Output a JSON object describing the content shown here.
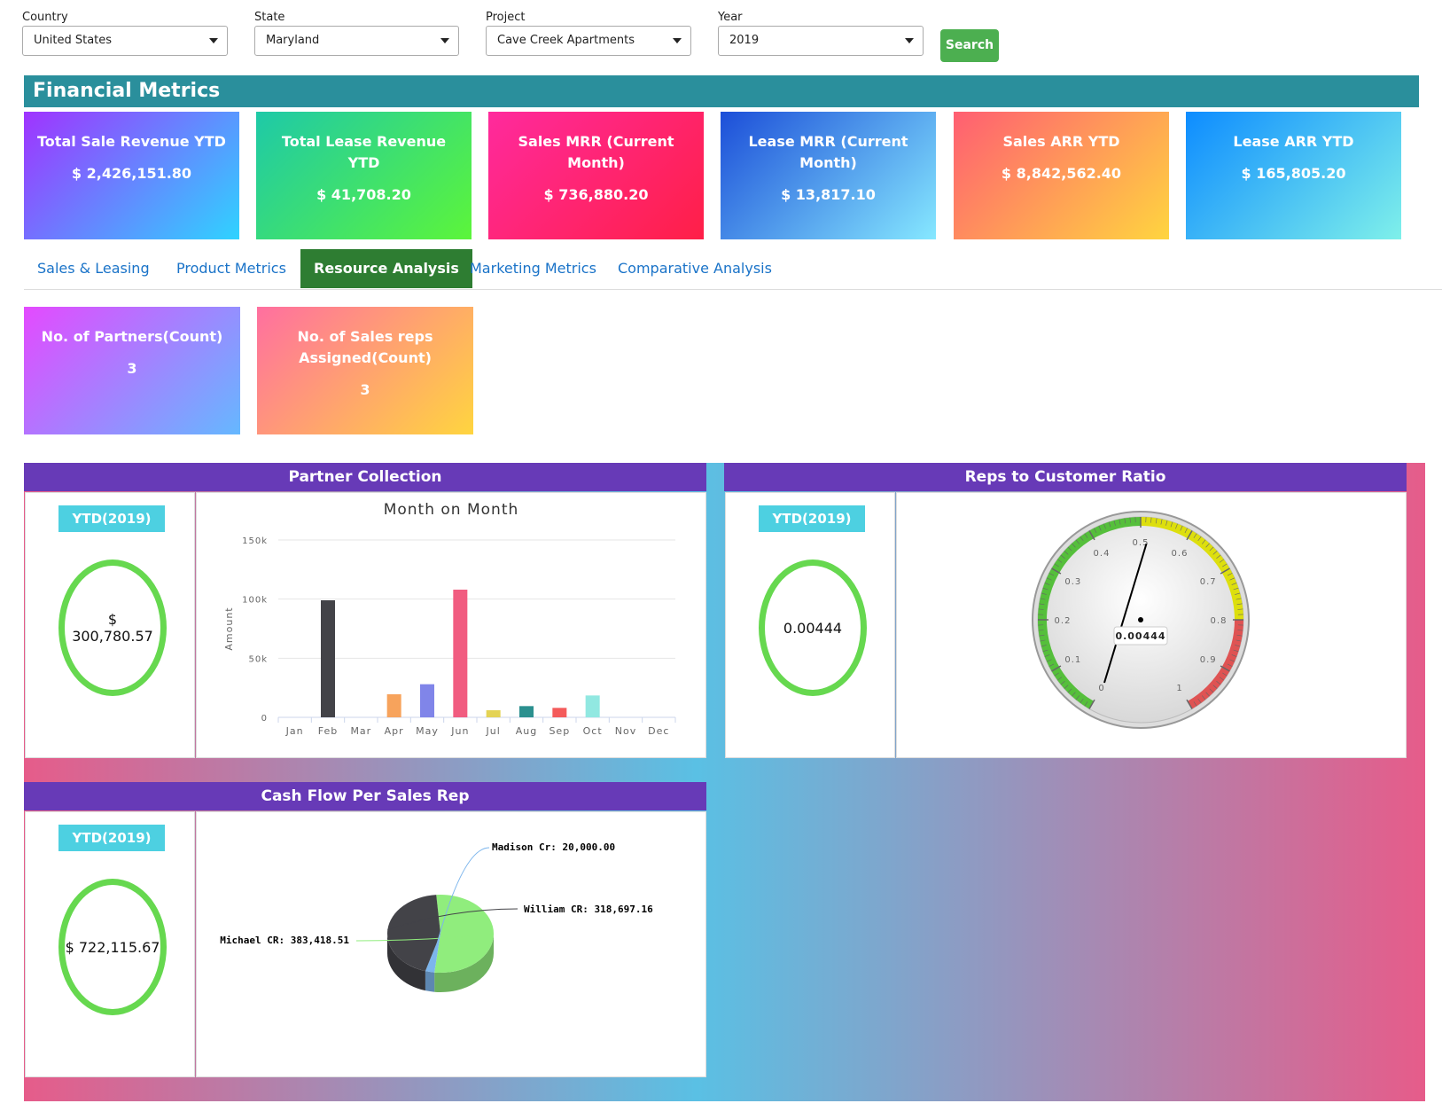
{
  "filters": {
    "country": {
      "label": "Country",
      "value": "United States"
    },
    "state": {
      "label": "State",
      "value": "Maryland"
    },
    "project": {
      "label": "Project",
      "value": "Cave Creek Apartments"
    },
    "year": {
      "label": "Year",
      "value": "2019"
    },
    "search_label": "Search"
  },
  "banner": {
    "title": "Financial Metrics"
  },
  "cards": [
    {
      "title": "Total Sale Revenue YTD",
      "value": "$ 2,426,151.80",
      "gradient": [
        "#a033ff",
        "#2fd3ff"
      ]
    },
    {
      "title": "Total Lease Revenue YTD",
      "value": "$ 41,708.20",
      "gradient": [
        "#1ec9a8",
        "#5cf53a"
      ]
    },
    {
      "title": "Sales MRR (Current Month)",
      "value": "$ 736,880.20",
      "gradient": [
        "#ff2a9d",
        "#ff1f47"
      ]
    },
    {
      "title": "Lease MRR (Current Month)",
      "value": "$ 13,817.10",
      "gradient": [
        "#1c4ed8",
        "#86e8ff"
      ]
    },
    {
      "title": "Sales ARR YTD",
      "value": "$ 8,842,562.40",
      "gradient": [
        "#ff5e72",
        "#ffd53f"
      ]
    },
    {
      "title": "Lease ARR YTD",
      "value": "$ 165,805.20",
      "gradient": [
        "#0d8cff",
        "#7ff0ea"
      ]
    }
  ],
  "tabs": [
    {
      "label": "Sales & Leasing",
      "active": false
    },
    {
      "label": "Product Metrics",
      "active": false
    },
    {
      "label": "Resource Analysis",
      "active": true
    },
    {
      "label": "Marketing Metrics",
      "active": false
    },
    {
      "label": "Comparative Analysis",
      "active": false
    }
  ],
  "resource_cards": [
    {
      "title": "No. of Partners(Count)",
      "value": "3",
      "gradient": [
        "#e44aff",
        "#65b8ff"
      ]
    },
    {
      "title": "No. of Sales reps Assigned(Count)",
      "value": "3",
      "gradient": [
        "#ff6fa0",
        "#ffd53f"
      ]
    }
  ],
  "partner_collection": {
    "title": "Partner Collection",
    "badge": "YTD(2019)",
    "ring_currency": "$",
    "ring_value": "300,780.57"
  },
  "reps_ratio": {
    "title": "Reps to Customer Ratio",
    "badge": "YTD(2019)",
    "ring_value": "0.00444",
    "gauge_readout": "0.00444",
    "gauge_ticks": [
      "0",
      "0.1",
      "0.2",
      "0.3",
      "0.4",
      "0.5",
      "0.6",
      "0.7",
      "0.8",
      "0.9",
      "1"
    ]
  },
  "cash_flow": {
    "title": "Cash Flow Per Sales Rep",
    "badge": "YTD(2019)",
    "ring_value": "$ 722,115.67"
  },
  "chart_data": [
    {
      "type": "bar",
      "title": "Month on Month",
      "xlabel": "",
      "ylabel": "Amount",
      "ylim": [
        0,
        150000
      ],
      "ytick_labels": [
        "0",
        "50k",
        "100k",
        "150k"
      ],
      "categories": [
        "Jan",
        "Feb",
        "Mar",
        "Apr",
        "May",
        "Jun",
        "Jul",
        "Aug",
        "Sep",
        "Oct",
        "Nov",
        "Dec"
      ],
      "values": [
        0,
        99000,
        0,
        19500,
        28000,
        108000,
        6000,
        9500,
        8000,
        18500,
        0,
        0
      ],
      "colors": [
        "#cccccc",
        "#434348",
        "#cccccc",
        "#f7a35c",
        "#8085e9",
        "#f15c80",
        "#e4d354",
        "#2b908f",
        "#f45b5b",
        "#91e8e1",
        "#cccccc",
        "#cccccc"
      ],
      "grid": true
    },
    {
      "type": "pie",
      "title": "",
      "slices": [
        {
          "name": "Michael CR",
          "value": 383418.51,
          "label": "Michael CR: 383,418.51",
          "color": "#90ed7d"
        },
        {
          "name": "Madison Cr",
          "value": 20000.0,
          "label": "Madison Cr: 20,000.00",
          "color": "#7cb5ec"
        },
        {
          "name": "William CR",
          "value": 318697.16,
          "label": "William CR: 318,697.16",
          "color": "#434348"
        }
      ]
    }
  ]
}
